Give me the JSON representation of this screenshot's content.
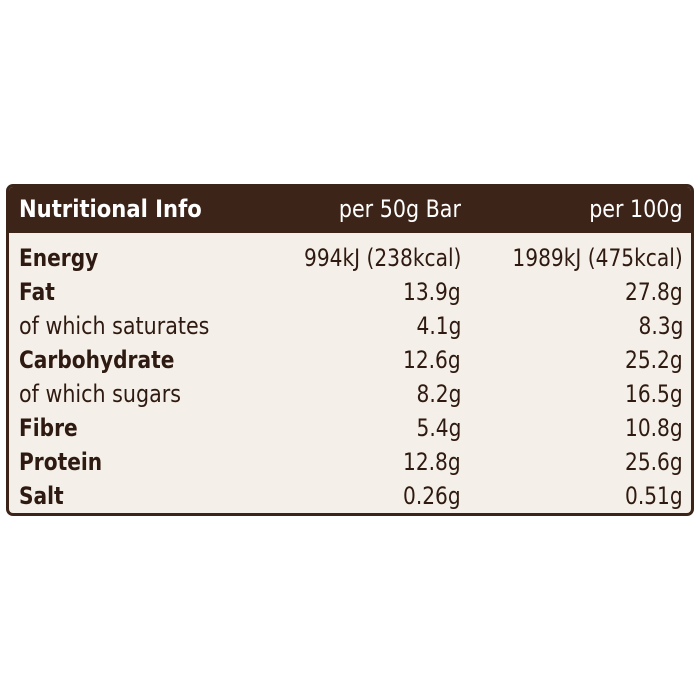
{
  "table": {
    "header": {
      "label": "Nutritional Info",
      "col1": "per 50g Bar",
      "col2": "per 100g"
    },
    "rows": [
      {
        "label": "Energy",
        "per_bar": "994kJ (238kcal)",
        "per_100g": "1989kJ (475kcal)",
        "bold": true
      },
      {
        "label": "Fat",
        "per_bar": "13.9g",
        "per_100g": "27.8g",
        "bold": true
      },
      {
        "label": "of which saturates",
        "per_bar": "4.1g",
        "per_100g": "8.3g",
        "bold": false
      },
      {
        "label": "Carbohydrate",
        "per_bar": "12.6g",
        "per_100g": "25.2g",
        "bold": true
      },
      {
        "label": "of which sugars",
        "per_bar": "8.2g",
        "per_100g": "16.5g",
        "bold": false
      },
      {
        "label": "Fibre",
        "per_bar": "5.4g",
        "per_100g": "10.8g",
        "bold": true
      },
      {
        "label": "Protein",
        "per_bar": "12.8g",
        "per_100g": "25.6g",
        "bold": true
      },
      {
        "label": "Salt",
        "per_bar": "0.26g",
        "per_100g": "0.51g",
        "bold": true
      }
    ]
  },
  "colors": {
    "header_bg": "#3d2418",
    "panel_bg": "#f4efe8",
    "text": "#2e1a10"
  }
}
